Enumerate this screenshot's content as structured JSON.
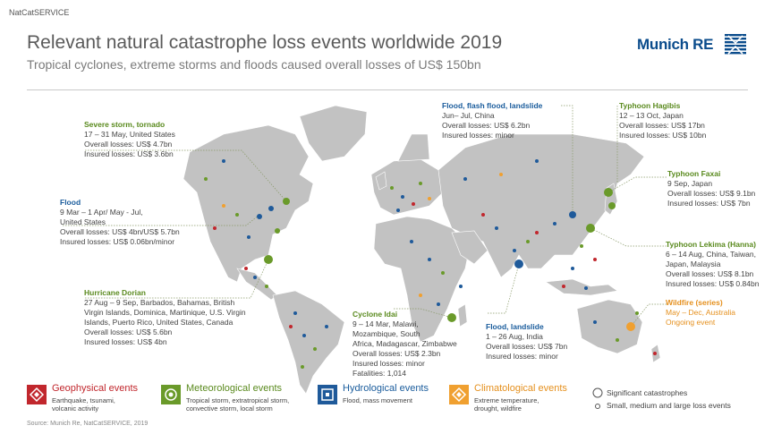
{
  "service": "NatCatSERVICE",
  "title": "Relevant natural catastrophe loss events worldwide 2019",
  "subtitle": "Tropical cyclones, extreme storms and floods caused overall losses of US$ 150bn",
  "logo": "Munich RE",
  "colors": {
    "geo": "#c1272d",
    "met": "#6a9a2a",
    "hyd": "#1f5a9a",
    "cli": "#f0a030",
    "land": "#bdbdbd",
    "leader": "#9a9a9a"
  },
  "events": {
    "severe_storm": {
      "h": "Severe storm, tornado",
      "l1": "17 – 31 May, United States",
      "l2": "Overall losses: US$ 4.7bn",
      "l3": "Insured losses: US$ 3.6bn"
    },
    "flood_us": {
      "h": "Flood",
      "l1": "9 Mar – 1 Apr/ May - Jul,",
      "l2": "United States",
      "l3": "Overall losses: US$ 4bn/US$ 5.7bn",
      "l4": "Insured losses: US$ 0.06bn/minor"
    },
    "dorian": {
      "h": "Hurricane Dorian",
      "l1": "27 Aug – 9 Sep, Barbados, Bahamas, British",
      "l2": "Virgin Islands, Dominica, Martinique, U.S. Virgin",
      "l3": "Islands, Puerto Rico, United States, Canada",
      "l4": "Overall losses: US$ 5.6bn",
      "l5": "Insured losses: US$ 4bn"
    },
    "flood_china": {
      "h": "Flood, flash flood, landslide",
      "l1": "Jun– Jul, China",
      "l2": "Overall losses: US$ 6.2bn",
      "l3": "Insured losses: minor"
    },
    "hagibis": {
      "h": "Typhoon Hagibis",
      "l1": "12 – 13 Oct, Japan",
      "l2": "Overall losses: US$ 17bn",
      "l3": "Insured losses: US$ 10bn"
    },
    "faxai": {
      "h": "Typhoon Faxai",
      "l1": "9 Sep, Japan",
      "l2": "Overall losses: US$ 9.1bn",
      "l3": "Insured losses: US$ 7bn"
    },
    "lekima": {
      "h": "Typhoon Lekima (Hanna)",
      "l1": "6 – 14 Aug, China, Taiwan,",
      "l2": "Japan, Malaysia",
      "l3": "Overall losses: US$ 8.1bn",
      "l4": "Insured losses: US$ 0.84bn"
    },
    "idai": {
      "h": "Cyclone Idai",
      "l1": "9 – 14 Mar, Malawi,",
      "l2": "Mozambique, South",
      "l3": "Africa, Madagascar, Zimbabwe",
      "l4": "Overall losses: US$ 2.3bn",
      "l5": "Insured losses: minor",
      "l6": "Fatalities: 1,014"
    },
    "flood_india": {
      "h": "Flood, landslide",
      "l1": "1 – 26 Aug, India",
      "l2": "Overall losses: US$ 7bn",
      "l3": "Insured losses: minor"
    },
    "wildfire": {
      "h": "Wildfire (series)",
      "l1": "May – Dec, Australia",
      "l2": "Ongoing event"
    }
  },
  "legend": {
    "geo": {
      "title": "Geophysical events",
      "s1": "Earthquake, tsunami,",
      "s2": "volcanic activity",
      "icon": "geophysical-icon"
    },
    "met": {
      "title": "Meteorological events",
      "s1": "Tropical storm, extratropical storm,",
      "s2": "convective storm, local storm",
      "icon": "meteorological-icon"
    },
    "hyd": {
      "title": "Hydrological events",
      "s1": "Flood, mass movement",
      "icon": "hydrological-icon"
    },
    "cli": {
      "title": "Climatological events",
      "s1": "Extreme temperature,",
      "s2": "drought, wildfire",
      "icon": "climatological-icon"
    },
    "sig": "Significant catastrophes",
    "small": "Small, medium and large loss events"
  },
  "source": "Source: Munich Re, NatCatSERVICE, 2019"
}
